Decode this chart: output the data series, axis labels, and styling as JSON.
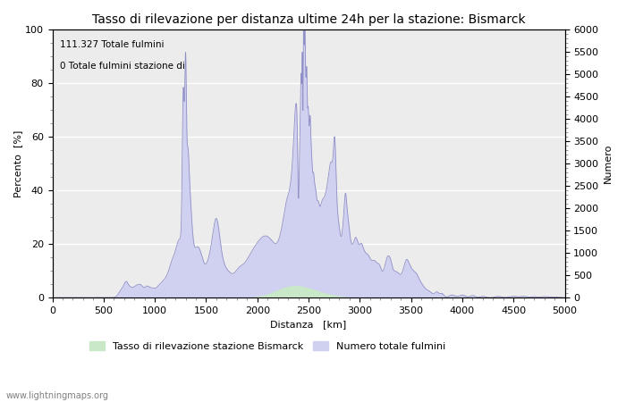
{
  "title": "Tasso di rilevazione per distanza ultime 24h per la stazione: Bismarck",
  "xlabel": "Distanza   [km]",
  "ylabel_left": "Percento  [%]",
  "ylabel_right": "Numero",
  "annotation_line1": "111.327 Totale fulmini",
  "annotation_line2": "0 Totale fulmini stazione di",
  "legend_label1": "Tasso di rilevazione stazione Bismarck",
  "legend_label2": "Numero totale fulmini",
  "watermark": "www.lightningmaps.org",
  "xlim": [
    0,
    5000
  ],
  "ylim_left": [
    0,
    100
  ],
  "ylim_right": [
    0,
    6000
  ],
  "xticks": [
    0,
    500,
    1000,
    1500,
    2000,
    2500,
    3000,
    3500,
    4000,
    4500,
    5000
  ],
  "yticks_left": [
    0,
    20,
    40,
    60,
    80,
    100
  ],
  "yticks_right": [
    0,
    500,
    1000,
    1500,
    2000,
    2500,
    3000,
    3500,
    4000,
    4500,
    5000,
    5500,
    6000
  ],
  "fill_color_green": "#c8e8c8",
  "fill_color_blue": "#d0d0f0",
  "line_color": "#9090c8",
  "bg_color": "#ffffff",
  "plot_bg_color": "#ececec",
  "grid_color": "#ffffff",
  "title_fontsize": 10,
  "axis_fontsize": 8,
  "tick_fontsize": 8
}
